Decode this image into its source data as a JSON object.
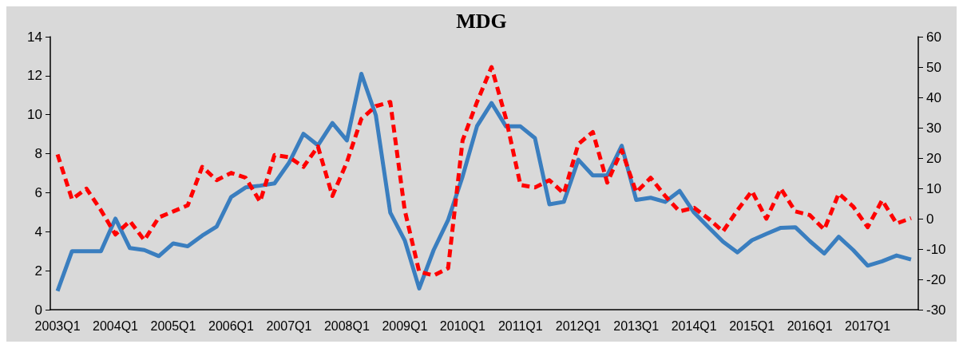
{
  "chart_data": {
    "type": "line",
    "title": "MDG",
    "categories": [
      "2003Q1",
      null,
      null,
      null,
      "2004Q1",
      null,
      null,
      null,
      "2005Q1",
      null,
      null,
      null,
      "2006Q1",
      null,
      null,
      null,
      "2007Q1",
      null,
      null,
      null,
      "2008Q1",
      null,
      null,
      null,
      "2009Q1",
      null,
      null,
      null,
      "2010Q1",
      null,
      null,
      null,
      "2011Q1",
      null,
      null,
      null,
      "2012Q1",
      null,
      null,
      null,
      "2013Q1",
      null,
      null,
      null,
      "2014Q1",
      null,
      null,
      null,
      "2015Q1",
      null,
      null,
      null,
      "2016Q1",
      null,
      null,
      null,
      "2017Q1",
      null,
      null,
      null
    ],
    "series": [
      {
        "color": "#3a7ebf",
        "line_style": "solid",
        "values": [
          0.96,
          3.0,
          3.0,
          3.0,
          4.67,
          3.16,
          3.06,
          2.75,
          3.4,
          3.25,
          3.8,
          4.26,
          5.78,
          6.27,
          6.36,
          6.48,
          7.53,
          9.02,
          8.43,
          9.57,
          8.68,
          12.1,
          9.98,
          4.98,
          3.56,
          1.09,
          3.06,
          4.6,
          6.83,
          9.42,
          10.6,
          9.4,
          9.4,
          8.8,
          5.4,
          5.53,
          7.69,
          6.89,
          6.89,
          8.41,
          5.63,
          5.74,
          5.53,
          6.09,
          4.98,
          4.23,
          3.49,
          2.94,
          3.56,
          3.89,
          4.2,
          4.23,
          3.52,
          2.88,
          3.74,
          3.06,
          2.26,
          2.48,
          2.78,
          2.57
        ]
      },
      {
        "color": "#ff0000",
        "line_style": "dashed",
        "axis": "y2",
        "values": [
          21.2,
          6.4,
          9.9,
          2.8,
          -5.2,
          -0.8,
          -7.1,
          0.4,
          2.4,
          4.4,
          17.1,
          12.7,
          15.1,
          13.5,
          5.6,
          21,
          20.3,
          17.1,
          23.8,
          7.5,
          18.6,
          32.9,
          37.1,
          38.5,
          2.8,
          -17.5,
          -18.7,
          -16.3,
          25.8,
          38.5,
          50,
          33,
          11.1,
          10.3,
          12.7,
          8.3,
          24.6,
          28.6,
          11.9,
          22.6,
          8.7,
          13.5,
          7.5,
          2.4,
          3.6,
          0,
          -4.2,
          2.8,
          9.1,
          0,
          9.9,
          2.4,
          1.2,
          -3.6,
          8.3,
          4,
          -2.8,
          6.1,
          -1.6,
          0.2
        ]
      }
    ],
    "ylim": [
      0,
      14
    ],
    "yticks": [
      0,
      2,
      4,
      6,
      8,
      10,
      12,
      14
    ],
    "y2lim": [
      -30,
      60
    ],
    "y2ticks": [
      -30,
      -20,
      -10,
      0,
      10,
      20,
      30,
      40,
      50,
      60
    ],
    "marker": "none"
  }
}
